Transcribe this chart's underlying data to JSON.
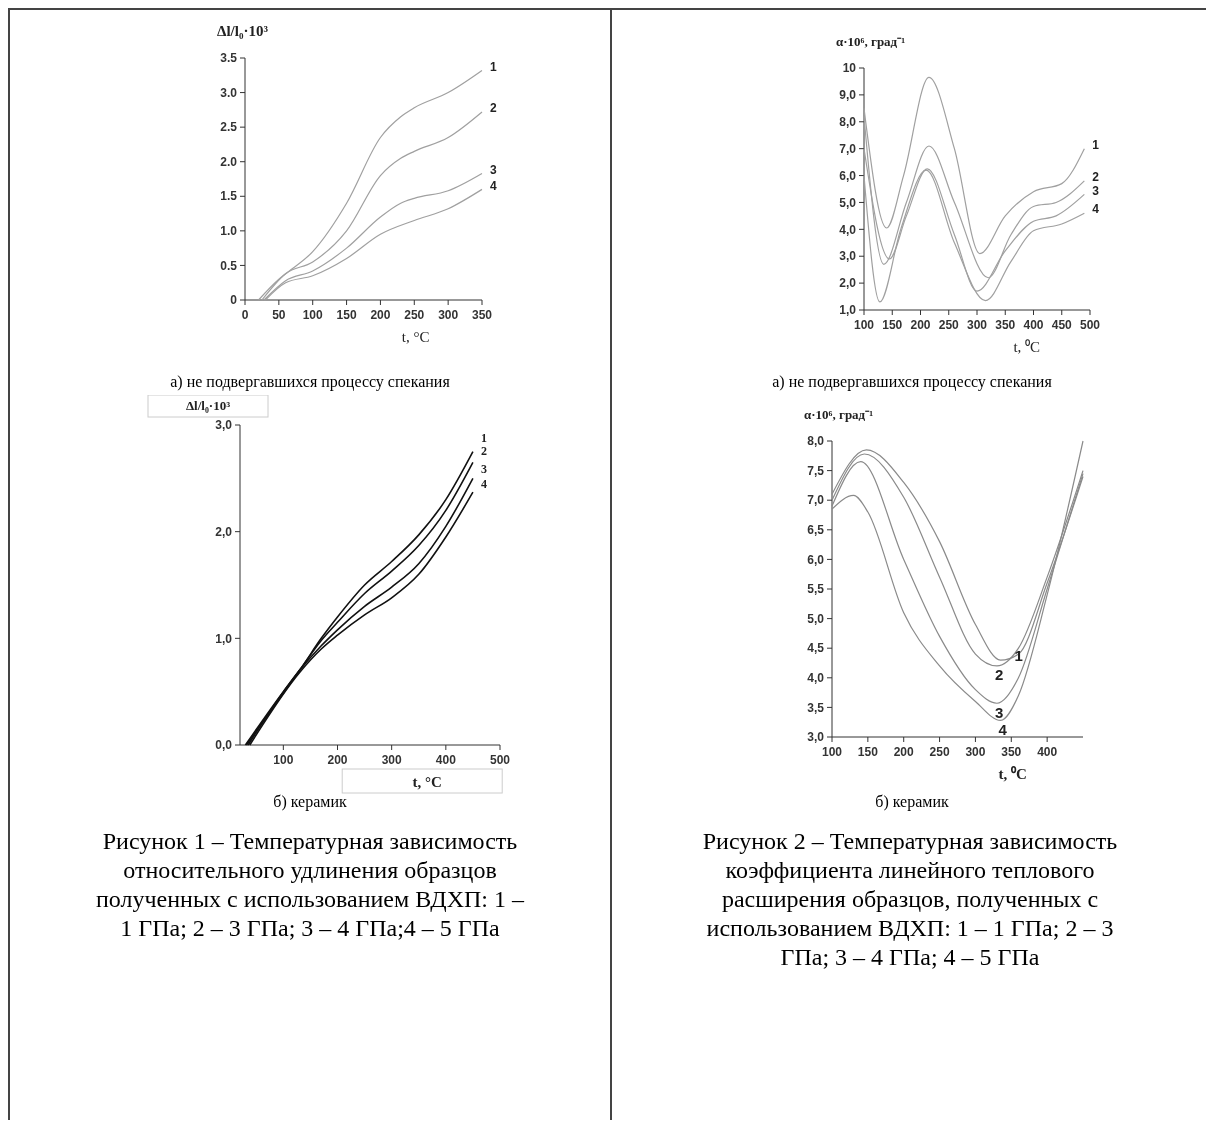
{
  "chart_data": [
    {
      "type": "line",
      "title": "а) не подвергавшихся процессу спекания",
      "ylabel": "Δl/l₀·10³",
      "xlabel": "t, °C",
      "xlim": [
        0,
        350
      ],
      "xticks": [
        0,
        50,
        100,
        150,
        200,
        250,
        300,
        350
      ],
      "ylim": [
        0,
        3.5
      ],
      "yticks": [
        0,
        0.5,
        {
          "value": 1,
          "label": "1.0"
        },
        1.5,
        {
          "value": 2,
          "label": "2.0"
        },
        2.5,
        {
          "value": 3,
          "label": "3.0"
        },
        3.5
      ],
      "series": [
        {
          "name": "1",
          "color": "#a0a0a0",
          "x": [
            20,
            50,
            60,
            100,
            150,
            200,
            230,
            250,
            300,
            350
          ],
          "values": [
            0,
            0.3,
            0.38,
            0.7,
            1.4,
            2.35,
            2.65,
            2.78,
            3.0,
            3.32
          ]
        },
        {
          "name": "2",
          "color": "#a0a0a0",
          "x": [
            25,
            60,
            100,
            150,
            200,
            230,
            250,
            300,
            350
          ],
          "values": [
            0,
            0.38,
            0.55,
            1.0,
            1.8,
            2.05,
            2.15,
            2.35,
            2.72
          ]
        },
        {
          "name": "3",
          "color": "#a0a0a0",
          "x": [
            28,
            60,
            100,
            150,
            200,
            230,
            250,
            300,
            350
          ],
          "values": [
            0,
            0.28,
            0.42,
            0.75,
            1.2,
            1.4,
            1.47,
            1.58,
            1.83
          ]
        },
        {
          "name": "4",
          "color": "#a0a0a0",
          "x": [
            30,
            60,
            100,
            150,
            200,
            250,
            300,
            350
          ],
          "values": [
            0,
            0.25,
            0.35,
            0.6,
            0.95,
            1.15,
            1.32,
            1.6
          ]
        }
      ]
    },
    {
      "type": "line",
      "title": "а) не подвергавшихся процессу спекания",
      "ylabel": "α·10⁶, град⁻¹",
      "xlabel": "t, ⁰C",
      "xlim": [
        100,
        500
      ],
      "xticks": [
        100,
        150,
        200,
        250,
        300,
        350,
        400,
        450,
        500
      ],
      "ylim": [
        1,
        10
      ],
      "yticks": [
        {
          "value": 1,
          "label": "1,0"
        },
        {
          "value": 2,
          "label": "2,0"
        },
        {
          "value": 3,
          "label": "3,0"
        },
        {
          "value": 4,
          "label": "4,0"
        },
        {
          "value": 5,
          "label": "5,0"
        },
        {
          "value": 6,
          "label": "6,0"
        },
        {
          "value": 7,
          "label": "7,0"
        },
        {
          "value": 8,
          "label": "8,0"
        },
        {
          "value": 9,
          "label": "9,0"
        },
        10
      ],
      "series": [
        {
          "name": "1",
          "color": "#a0a0a0",
          "x": [
            100,
            140,
            170,
            215,
            260,
            305,
            350,
            400,
            450,
            490
          ],
          "values": [
            8.5,
            4.05,
            6,
            9.65,
            7,
            3.1,
            4.5,
            5.4,
            5.7,
            7.0
          ]
        },
        {
          "name": "2",
          "color": "#a0a0a0",
          "x": [
            100,
            135,
            175,
            215,
            260,
            320,
            360,
            400,
            440,
            490
          ],
          "values": [
            8.2,
            2.7,
            5,
            7.1,
            5,
            2.2,
            3.8,
            4.85,
            5.0,
            5.8
          ]
        },
        {
          "name": "3",
          "color": "#a0a0a0",
          "x": [
            100,
            145,
            175,
            212,
            260,
            300,
            350,
            400,
            440,
            490
          ],
          "values": [
            7,
            2.9,
            4.5,
            6.25,
            3.8,
            1.7,
            3.2,
            4.3,
            4.5,
            5.3
          ]
        },
        {
          "name": "4",
          "color": "#a0a0a0",
          "x": [
            100,
            128,
            165,
            210,
            260,
            315,
            360,
            400,
            450,
            490
          ],
          "values": [
            6,
            1.3,
            4,
            6.2,
            3.5,
            1.35,
            2.8,
            3.95,
            4.2,
            4.6
          ]
        }
      ]
    },
    {
      "type": "line",
      "title": "б) керамик",
      "ylabel": "Δl/l₀·10³",
      "xlabel": "t, °C",
      "xlim": [
        20,
        500
      ],
      "xticks": [
        100,
        200,
        300,
        400,
        500
      ],
      "ylim": [
        0,
        3
      ],
      "yticks": [
        {
          "value": 0,
          "label": "0,0"
        },
        {
          "value": 1,
          "label": "1,0"
        },
        {
          "value": 2,
          "label": "2,0"
        },
        {
          "value": 3,
          "label": "3,0"
        }
      ],
      "annotations": [
        "Рисунок 1 – Температурная зависимость относительного удлинения образцов полученных с использованием ВДХП: 1 – 1 ГПа; 2 – 3 ГПа; 3 – 4 ГПа;4 – 5 ГПа"
      ],
      "series": [
        {
          "name": "1",
          "color": "#111111",
          "x": [
            30,
            100,
            130,
            170,
            200,
            250,
            300,
            350,
            400,
            450
          ],
          "values": [
            0,
            0.5,
            0.7,
            1.0,
            1.2,
            1.5,
            1.72,
            1.97,
            2.3,
            2.75
          ]
        },
        {
          "name": "2",
          "color": "#111111",
          "x": [
            32,
            130,
            170,
            200,
            250,
            300,
            350,
            400,
            450
          ],
          "values": [
            0,
            0.7,
            0.98,
            1.15,
            1.42,
            1.63,
            1.87,
            2.2,
            2.65
          ]
        },
        {
          "name": "3",
          "color": "#111111",
          "x": [
            35,
            130,
            170,
            200,
            250,
            300,
            350,
            400,
            450
          ],
          "values": [
            0,
            0.7,
            0.93,
            1.08,
            1.3,
            1.48,
            1.7,
            2.05,
            2.5
          ]
        },
        {
          "name": "4",
          "color": "#111111",
          "x": [
            38,
            130,
            170,
            200,
            250,
            300,
            350,
            400,
            450
          ],
          "values": [
            0,
            0.68,
            0.9,
            1.03,
            1.22,
            1.38,
            1.6,
            1.95,
            2.37
          ]
        }
      ]
    },
    {
      "type": "line",
      "title": "б) керамик",
      "ylabel": "α·10⁶, град⁻¹",
      "xlabel": "t, ⁰C",
      "xlim": [
        100,
        450
      ],
      "xticks": [
        100,
        150,
        200,
        250,
        300,
        350,
        400
      ],
      "ylim": [
        3,
        8
      ],
      "yticks": [
        {
          "value": 3,
          "label": "3,0"
        },
        {
          "value": 3.5,
          "label": "3,5"
        },
        {
          "value": 4,
          "label": "4,0"
        },
        {
          "value": 4.5,
          "label": "4,5"
        },
        {
          "value": 5,
          "label": "5,0"
        },
        {
          "value": 5.5,
          "label": "5,5"
        },
        {
          "value": 6,
          "label": "6,0"
        },
        {
          "value": 6.5,
          "label": "6,5"
        },
        {
          "value": 7,
          "label": "7,0"
        },
        {
          "value": 7.5,
          "label": "7,5"
        },
        {
          "value": 8,
          "label": "8,0"
        }
      ],
      "annotations": [
        "Рисунок 2 – Температурная зависимость коэффициента линейного теплового расширения образцов, полученных с использованием ВДХП: 1 – 1 ГПа; 2 – 3 ГПа; 3 – 4 ГПа; 4 – 5 ГПа"
      ],
      "series": [
        {
          "name": "1",
          "color": "#8a8a8a",
          "x": [
            100,
            148,
            200,
            250,
            300,
            335,
            360,
            400,
            450
          ],
          "values": [
            7.1,
            7.85,
            7.3,
            6.3,
            4.9,
            4.3,
            4.4,
            5.6,
            7.4
          ]
        },
        {
          "name": "2",
          "color": "#8a8a8a",
          "x": [
            100,
            145,
            200,
            250,
            300,
            330,
            360,
            400,
            450
          ],
          "values": [
            7.0,
            7.78,
            7.05,
            5.7,
            4.4,
            4.2,
            4.5,
            5.7,
            7.5
          ]
        },
        {
          "name": "3",
          "color": "#8a8a8a",
          "x": [
            100,
            140,
            200,
            250,
            300,
            330,
            360,
            400,
            450
          ],
          "values": [
            6.9,
            7.65,
            6.0,
            4.7,
            3.8,
            3.57,
            4.0,
            5.5,
            7.45
          ]
        },
        {
          "name": "4",
          "color": "#8a8a8a",
          "x": [
            100,
            130,
            150,
            200,
            250,
            300,
            335,
            360,
            400,
            450
          ],
          "values": [
            6.85,
            7.08,
            6.8,
            5.1,
            4.2,
            3.6,
            3.28,
            3.7,
            5.4,
            8.0
          ]
        }
      ]
    }
  ]
}
